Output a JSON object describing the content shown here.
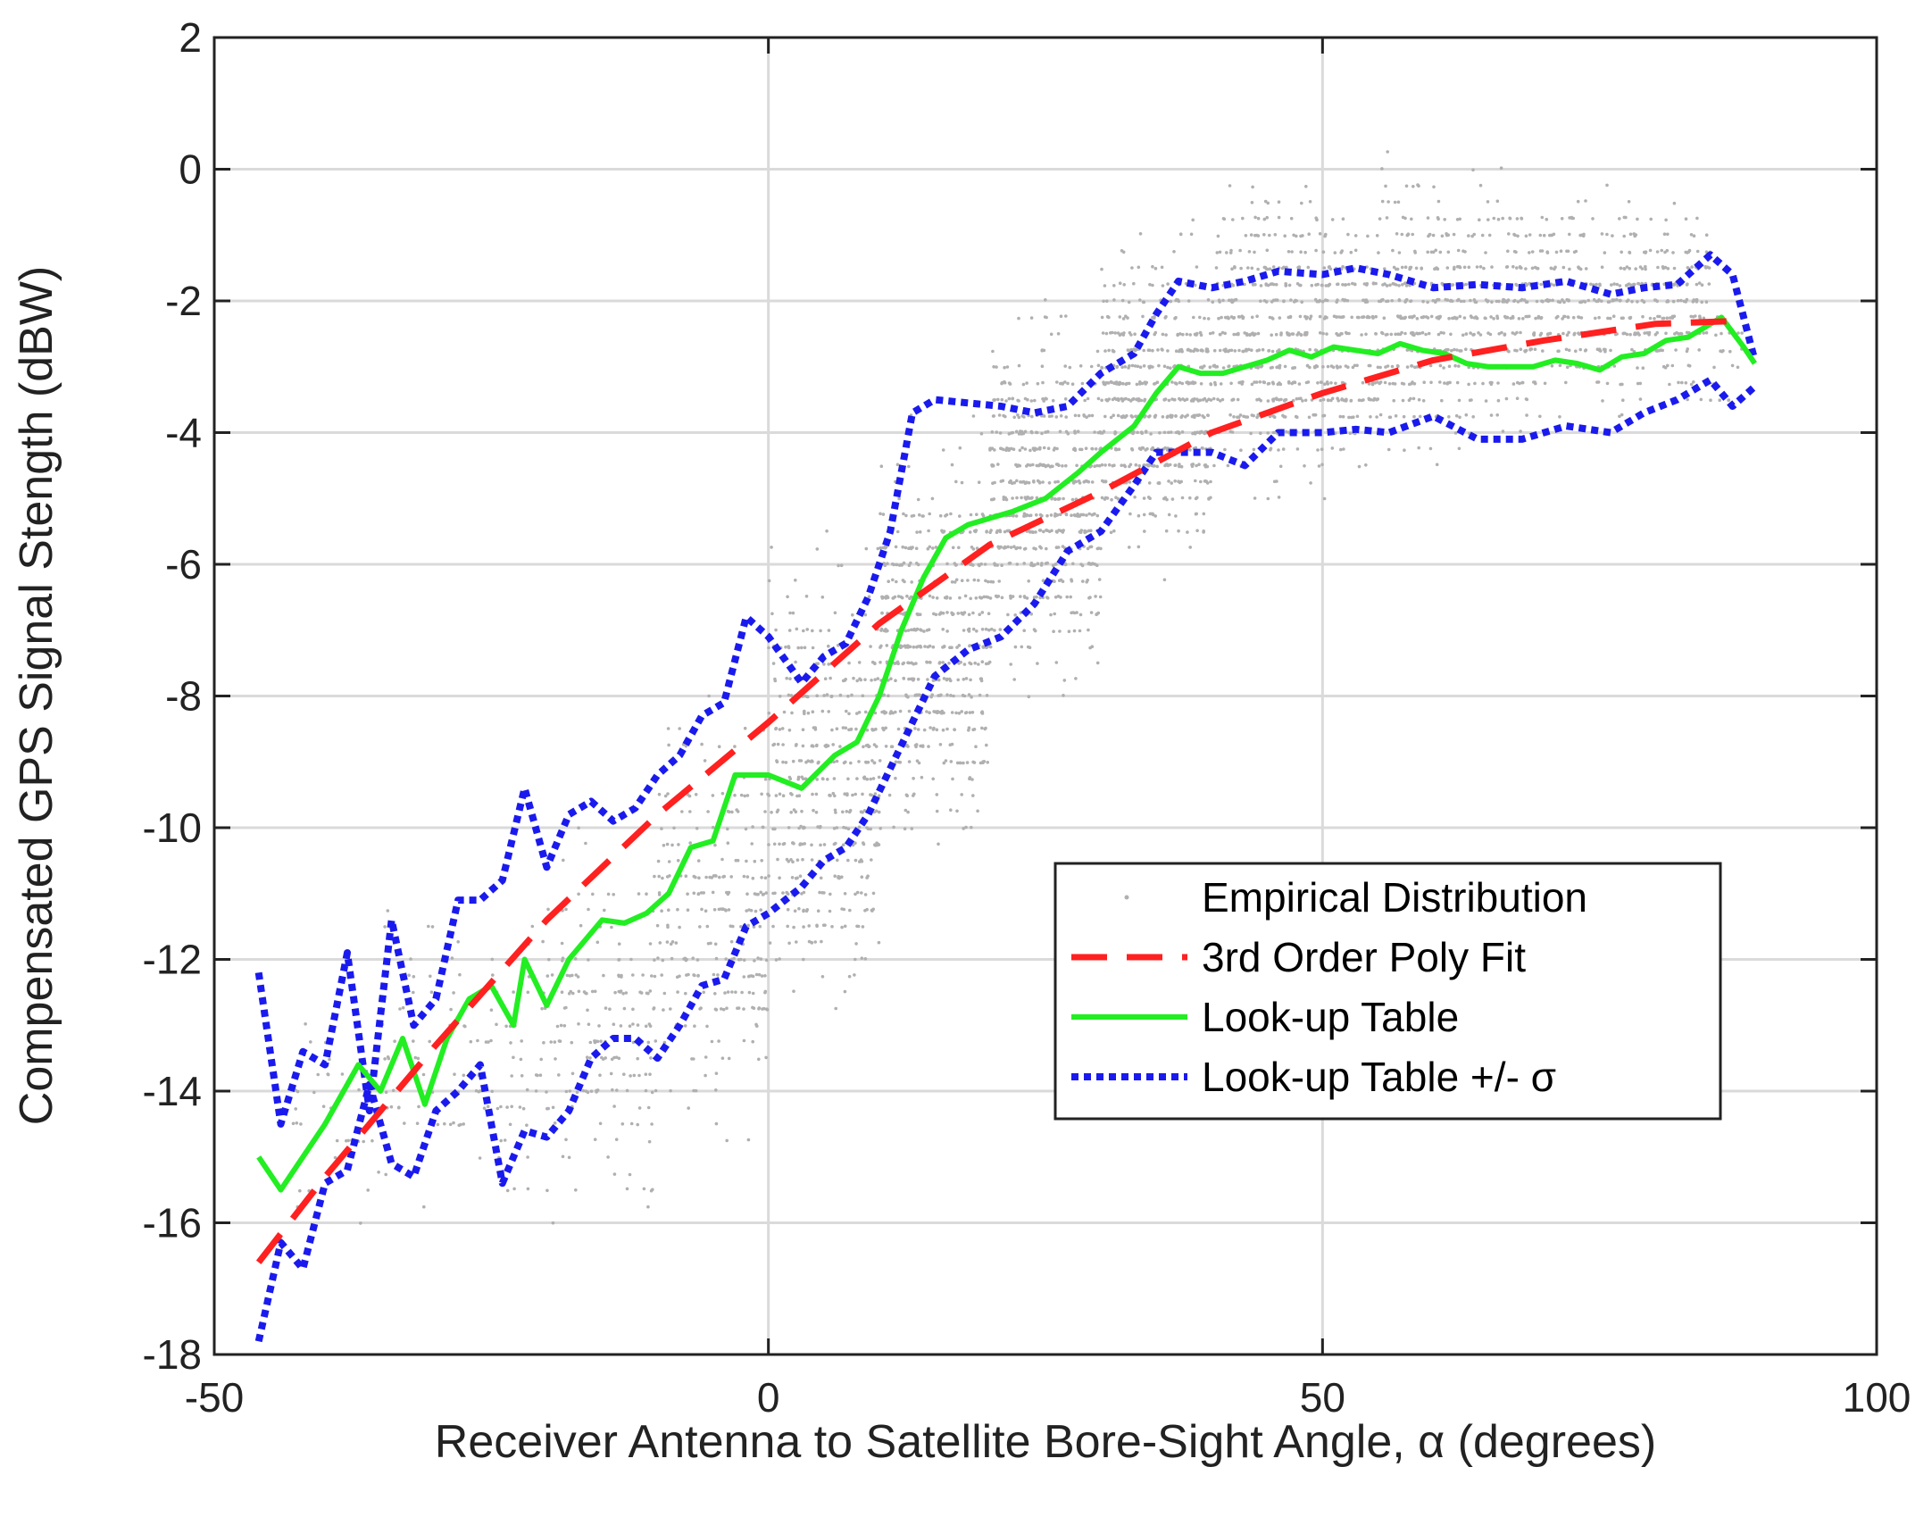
{
  "chart_data": {
    "type": "line",
    "xlabel": "Receiver Antenna to Satellite Bore-Sight Angle, α (degrees)",
    "ylabel": "Compensated GPS Signal Stength (dBW)",
    "xlim": [
      -50,
      100
    ],
    "ylim": [
      -18,
      2
    ],
    "xticks": [
      "-50",
      "0",
      "50",
      "100"
    ],
    "yticks": [
      "-18",
      "-16",
      "-14",
      "-12",
      "-10",
      "-8",
      "-6",
      "-4",
      "-2",
      "0",
      "2"
    ],
    "grid": true,
    "legend_position": "bottom-right",
    "series": [
      {
        "name": "Empirical Distribution",
        "style": "scatter",
        "color": "#b0b0b0",
        "clusters": [
          {
            "x": [
              -45,
              -35
            ],
            "y": [
              -17,
              -12
            ],
            "n": 40
          },
          {
            "x": [
              -35,
              -20
            ],
            "y": [
              -16.5,
              -10.5
            ],
            "n": 120
          },
          {
            "x": [
              -20,
              -10
            ],
            "y": [
              -16.5,
              -9.5
            ],
            "n": 180
          },
          {
            "x": [
              -10,
              0
            ],
            "y": [
              -15.5,
              -7.5
            ],
            "n": 260
          },
          {
            "x": [
              0,
              10
            ],
            "y": [
              -13.5,
              -5
            ],
            "n": 420
          },
          {
            "x": [
              10,
              20
            ],
            "y": [
              -11,
              -3.5
            ],
            "n": 520
          },
          {
            "x": [
              20,
              30
            ],
            "y": [
              -8.5,
              -1.5
            ],
            "n": 560
          },
          {
            "x": [
              30,
              40
            ],
            "y": [
              -6.5,
              -0.5
            ],
            "n": 560
          },
          {
            "x": [
              40,
              55
            ],
            "y": [
              -5.5,
              0.3
            ],
            "n": 620
          },
          {
            "x": [
              55,
              70
            ],
            "y": [
              -4.8,
              0.4
            ],
            "n": 540
          },
          {
            "x": [
              70,
              85
            ],
            "y": [
              -4.2,
              0.2
            ],
            "n": 400
          },
          {
            "x": [
              85,
              88
            ],
            "y": [
              -4.2,
              -1.5
            ],
            "n": 20
          }
        ]
      },
      {
        "name": "3rd Order Poly Fit",
        "style": "dashed",
        "color": "#ff2020",
        "x": [
          -46,
          -40,
          -30,
          -20,
          -10,
          0,
          10,
          20,
          30,
          40,
          50,
          60,
          70,
          80,
          88
        ],
        "y": [
          -16.6,
          -15.3,
          -13.3,
          -11.4,
          -9.8,
          -8.4,
          -6.9,
          -5.7,
          -4.9,
          -4.0,
          -3.4,
          -2.9,
          -2.6,
          -2.35,
          -2.3
        ]
      },
      {
        "name": "Look-up Table",
        "style": "solid",
        "color": "#22ee22",
        "x": [
          -46,
          -44,
          -40,
          -37,
          -35,
          -33,
          -31,
          -29,
          -27,
          -25,
          -23,
          -22,
          -20,
          -18,
          -15,
          -13,
          -11,
          -9,
          -7,
          -5,
          -3,
          0,
          3,
          6,
          8,
          10,
          12,
          14,
          16,
          18,
          20,
          22,
          25,
          28,
          30,
          33,
          35,
          37,
          39,
          41,
          43,
          45,
          47,
          49,
          51,
          53,
          55,
          57,
          59,
          61,
          63,
          65,
          67,
          69,
          71,
          73,
          75,
          77,
          79,
          81,
          83,
          86,
          88,
          89
        ],
        "y": [
          -15.0,
          -15.5,
          -14.5,
          -13.6,
          -14.0,
          -13.2,
          -14.2,
          -13.2,
          -12.6,
          -12.4,
          -13.0,
          -12.0,
          -12.7,
          -12.0,
          -11.4,
          -11.45,
          -11.3,
          -11.0,
          -10.3,
          -10.2,
          -9.2,
          -9.2,
          -9.4,
          -8.9,
          -8.7,
          -8.0,
          -7.0,
          -6.2,
          -5.6,
          -5.4,
          -5.3,
          -5.2,
          -5.0,
          -4.6,
          -4.3,
          -3.9,
          -3.4,
          -3.0,
          -3.1,
          -3.1,
          -3.0,
          -2.9,
          -2.75,
          -2.85,
          -2.7,
          -2.75,
          -2.8,
          -2.65,
          -2.75,
          -2.8,
          -2.95,
          -3.0,
          -3.0,
          -3.0,
          -2.9,
          -2.95,
          -3.05,
          -2.85,
          -2.8,
          -2.6,
          -2.55,
          -2.25,
          -2.7,
          -2.95
        ]
      },
      {
        "name": "Look-up Table +/- σ",
        "style": "dotted",
        "color": "#1a1aee",
        "x": [
          -46,
          -44,
          -42,
          -40,
          -38,
          -36,
          -34,
          -32,
          -30,
          -28,
          -26,
          -24,
          -22,
          -20,
          -18,
          -16,
          -14,
          -12,
          -10,
          -8,
          -6,
          -4,
          -2,
          0,
          3,
          5,
          7,
          9,
          11,
          13,
          15,
          18,
          21,
          24,
          27,
          30,
          33,
          35,
          37,
          40,
          43,
          46,
          50,
          53,
          56,
          60,
          64,
          68,
          72,
          76,
          79,
          82,
          85,
          87,
          89
        ],
        "y": [
          -12.2,
          -14.5,
          -13.4,
          -13.6,
          -11.9,
          -14.3,
          -11.4,
          -13.0,
          -12.6,
          -11.1,
          -11.1,
          -10.8,
          -9.4,
          -10.6,
          -9.8,
          -9.6,
          -9.9,
          -9.7,
          -9.2,
          -8.9,
          -8.3,
          -8.1,
          -6.8,
          -7.1,
          -7.8,
          -7.4,
          -7.2,
          -6.5,
          -5.5,
          -3.7,
          -3.5,
          -3.55,
          -3.6,
          -3.7,
          -3.6,
          -3.1,
          -2.8,
          -2.2,
          -1.7,
          -1.8,
          -1.7,
          -1.55,
          -1.6,
          -1.5,
          -1.6,
          -1.8,
          -1.75,
          -1.8,
          -1.7,
          -1.9,
          -1.8,
          -1.75,
          -1.3,
          -1.6,
          -2.9
        ],
        "y_lower_x": [
          -46,
          -44,
          -42,
          -40,
          -38,
          -36,
          -34,
          -32,
          -30,
          -28,
          -26,
          -24,
          -22,
          -20,
          -18,
          -16,
          -14,
          -12,
          -10,
          -8,
          -6,
          -4,
          -2,
          0,
          3,
          5,
          7,
          9,
          11,
          13,
          15,
          18,
          21,
          24,
          27,
          30,
          33,
          35,
          37,
          40,
          43,
          46,
          50,
          53,
          56,
          60,
          64,
          68,
          72,
          76,
          79,
          82,
          85,
          87,
          89
        ],
        "y_lower": [
          -17.8,
          -16.3,
          -16.7,
          -15.4,
          -15.2,
          -13.9,
          -15.1,
          -15.3,
          -14.3,
          -14.0,
          -13.6,
          -15.4,
          -14.6,
          -14.7,
          -14.3,
          -13.5,
          -13.2,
          -13.2,
          -13.5,
          -13.0,
          -12.4,
          -12.3,
          -11.5,
          -11.3,
          -10.9,
          -10.5,
          -10.3,
          -9.8,
          -9.1,
          -8.4,
          -7.7,
          -7.3,
          -7.1,
          -6.6,
          -5.8,
          -5.5,
          -4.8,
          -4.3,
          -4.3,
          -4.3,
          -4.5,
          -4.0,
          -4.0,
          -3.95,
          -4.0,
          -3.75,
          -4.1,
          -4.1,
          -3.9,
          -4.0,
          -3.7,
          -3.5,
          -3.2,
          -3.6,
          -3.3
        ]
      }
    ],
    "legend": [
      {
        "label": "Empirical Distribution",
        "style": "dot",
        "color": "#b0b0b0"
      },
      {
        "label": "3rd Order Poly Fit",
        "style": "dashed",
        "color": "#ff2020"
      },
      {
        "label": "Look-up Table",
        "style": "solid",
        "color": "#22ee22"
      },
      {
        "label": "Look-up Table +/- σ",
        "style": "dotted",
        "color": "#1a1aee"
      }
    ]
  }
}
